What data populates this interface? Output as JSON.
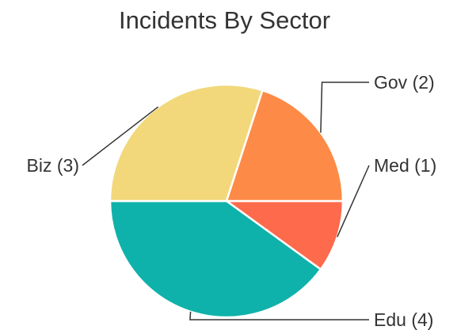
{
  "chart_data": {
    "type": "pie",
    "title": "Incidents By Sector",
    "slices": [
      {
        "label": "Med (1)",
        "value": 1,
        "color": "#fe6a4c"
      },
      {
        "label": "Edu (4)",
        "value": 4,
        "color": "#0fb2aa"
      },
      {
        "label": "Biz (3)",
        "value": 3,
        "color": "#f2d87a"
      },
      {
        "label": "Gov (2)",
        "value": 2,
        "color": "#fd8b47"
      }
    ],
    "start_angle_deg": 0,
    "direction": "clockwise",
    "legend": "none",
    "labels": "outside-with-leader-lines"
  }
}
